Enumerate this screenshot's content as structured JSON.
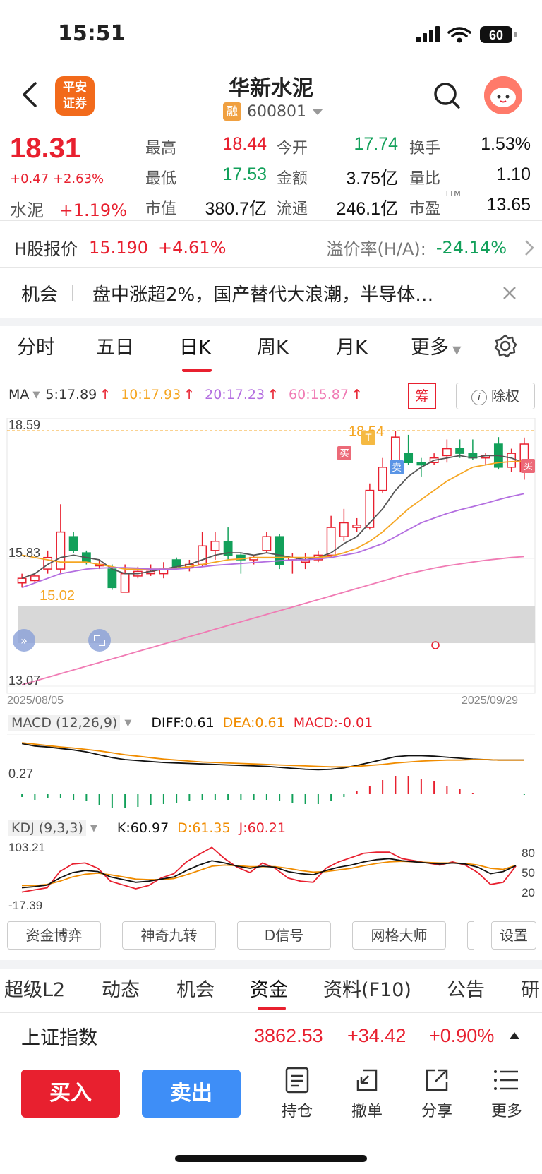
{
  "status_bar": {
    "time": "15:51",
    "battery": "60"
  },
  "header": {
    "logo_text_1": "平安",
    "logo_text_2": "证券",
    "stock_name": "华新水泥",
    "rong_badge": "融",
    "stock_code": "600801",
    "icons": [
      "back-icon",
      "search-icon",
      "avatar-icon"
    ]
  },
  "quote": {
    "price": "18.31",
    "change": "+0.47 +2.63%",
    "sector_label": "水泥",
    "sector_change": "+1.19%",
    "fields": [
      {
        "label": "最高",
        "value": "18.44",
        "color": "red"
      },
      {
        "label": "今开",
        "value": "17.74",
        "color": "green"
      },
      {
        "label": "换手",
        "value": "1.53%",
        "color": "black"
      },
      {
        "label": "最低",
        "value": "17.53",
        "color": "green"
      },
      {
        "label": "金额",
        "value": "3.75亿",
        "color": "black"
      },
      {
        "label": "量比",
        "value": "1.10",
        "color": "black"
      },
      {
        "label": "市值",
        "value": "380.7亿",
        "color": "black"
      },
      {
        "label": "流通",
        "value": "246.1亿",
        "color": "black"
      },
      {
        "label": "市盈",
        "value": "13.65",
        "color": "black"
      }
    ],
    "pe_sup": "TTM"
  },
  "hshare": {
    "label": "H股报价",
    "price": "15.190",
    "change": "+4.61%",
    "premium_label": "溢价率(H/A):",
    "premium_value": "-24.14%"
  },
  "opportunity": {
    "tag": "机会",
    "text": "盘中涨超2%，国产替代大浪潮，半导体…"
  },
  "ktabs": [
    "分时",
    "五日",
    "日K",
    "周K",
    "月K",
    "更多"
  ],
  "ktab_active": "日K",
  "ma": {
    "label": "MA",
    "ma5": "5:17.89",
    "ma10": "10:17.93",
    "ma20": "20:17.23",
    "ma60": "60:15.87",
    "chou": "筹",
    "chuquan": "除权"
  },
  "kchart_labels": {
    "top": "18.59",
    "mid": "15.83",
    "bottom": "13.07",
    "low_marker": "15.02",
    "high_marker": "18.54",
    "date_start": "2025/08/05",
    "date_end": "2025/09/29",
    "buy_tag": "买",
    "sell_tag": "卖",
    "t_tag": "T"
  },
  "macd": {
    "name": "MACD (12,26,9)",
    "diff": "DIFF:0.61",
    "dea": "DEA:0.61",
    "macd": "MACD:-0.01",
    "axis": "0.27"
  },
  "kdj": {
    "name": "KDJ (9,3,3)",
    "k": "K:60.97",
    "d": "D:61.35",
    "j": "J:60.21",
    "top": "103.21",
    "bottom": "-17.39",
    "r80": "80",
    "r50": "50",
    "r20": "20"
  },
  "tools": [
    "资金博弈",
    "神奇九转",
    "D信号",
    "网格大师",
    "设置"
  ],
  "btabs": [
    "超级L2",
    "动态",
    "机会",
    "资金",
    "资料(F10)",
    "公告",
    "研"
  ],
  "btab_active": "资金",
  "index": {
    "name": "上证指数",
    "value": "3862.53",
    "change": "+34.42",
    "pct": "+0.90%"
  },
  "bottom": {
    "buy": "买入",
    "sell": "卖出",
    "items": [
      "持仓",
      "撤单",
      "分享",
      "更多"
    ]
  },
  "colors": {
    "up": "#e8202f",
    "down": "#12a05a",
    "ma10": "#f5a623",
    "ma20": "#b36ee0",
    "ma60": "#f07bb4",
    "accent": "#3e8ef7"
  },
  "chart_data": {
    "type": "candlestick",
    "x_range": [
      "2025/08/05",
      "2025/09/29"
    ],
    "ylim": [
      13.07,
      18.59
    ],
    "candles": [
      {
        "o": 15.3,
        "c": 15.4,
        "h": 15.5,
        "l": 15.2
      },
      {
        "o": 15.35,
        "c": 15.45,
        "h": 15.5,
        "l": 15.3
      },
      {
        "o": 15.6,
        "c": 15.85,
        "h": 16.0,
        "l": 15.5
      },
      {
        "o": 15.6,
        "c": 16.4,
        "h": 17.0,
        "l": 15.5
      },
      {
        "o": 16.3,
        "c": 16.0,
        "h": 16.4,
        "l": 15.95
      },
      {
        "o": 15.95,
        "c": 15.75,
        "h": 16.0,
        "l": 15.7
      },
      {
        "o": 15.7,
        "c": 15.7,
        "h": 15.8,
        "l": 15.6
      },
      {
        "o": 15.6,
        "c": 15.2,
        "h": 15.7,
        "l": 15.15
      },
      {
        "o": 15.1,
        "c": 15.5,
        "h": 15.7,
        "l": 15.1
      },
      {
        "o": 15.45,
        "c": 15.55,
        "h": 15.65,
        "l": 15.4
      },
      {
        "o": 15.5,
        "c": 15.55,
        "h": 15.7,
        "l": 15.45
      },
      {
        "o": 15.5,
        "c": 15.6,
        "h": 15.75,
        "l": 15.4
      },
      {
        "o": 15.8,
        "c": 15.65,
        "h": 15.85,
        "l": 15.6
      },
      {
        "o": 15.65,
        "c": 15.7,
        "h": 15.8,
        "l": 15.55
      },
      {
        "o": 15.7,
        "c": 16.1,
        "h": 16.4,
        "l": 15.65
      },
      {
        "o": 16.0,
        "c": 16.2,
        "h": 16.4,
        "l": 15.8
      },
      {
        "o": 16.2,
        "c": 15.9,
        "h": 16.5,
        "l": 15.8
      },
      {
        "o": 15.9,
        "c": 15.8,
        "h": 15.95,
        "l": 15.5
      },
      {
        "o": 15.8,
        "c": 15.85,
        "h": 15.9,
        "l": 15.7
      },
      {
        "o": 16.0,
        "c": 16.3,
        "h": 16.4,
        "l": 15.95
      },
      {
        "o": 16.3,
        "c": 15.7,
        "h": 16.35,
        "l": 15.6
      },
      {
        "o": 15.8,
        "c": 15.85,
        "h": 15.95,
        "l": 15.5
      },
      {
        "o": 15.75,
        "c": 15.8,
        "h": 15.95,
        "l": 15.6
      },
      {
        "o": 15.8,
        "c": 15.9,
        "h": 16.0,
        "l": 15.75
      },
      {
        "o": 15.9,
        "c": 16.5,
        "h": 16.75,
        "l": 15.85
      },
      {
        "o": 16.3,
        "c": 16.6,
        "h": 16.9,
        "l": 16.2
      },
      {
        "o": 16.5,
        "c": 16.55,
        "h": 16.7,
        "l": 16.4
      },
      {
        "o": 16.5,
        "c": 17.3,
        "h": 17.45,
        "l": 16.45
      },
      {
        "o": 17.3,
        "c": 17.8,
        "h": 18.0,
        "l": 17.25
      },
      {
        "o": 17.8,
        "c": 18.45,
        "h": 18.59,
        "l": 17.7
      },
      {
        "o": 18.1,
        "c": 17.9,
        "h": 18.5,
        "l": 17.85
      },
      {
        "o": 17.9,
        "c": 17.85,
        "h": 18.0,
        "l": 17.6
      },
      {
        "o": 17.9,
        "c": 18.0,
        "h": 18.1,
        "l": 17.85
      },
      {
        "o": 18.05,
        "c": 18.2,
        "h": 18.4,
        "l": 17.9
      },
      {
        "o": 18.2,
        "c": 18.1,
        "h": 18.4,
        "l": 18.0
      },
      {
        "o": 18.1,
        "c": 18.0,
        "h": 18.4,
        "l": 17.95
      },
      {
        "o": 18.0,
        "c": 18.05,
        "h": 18.1,
        "l": 17.85
      },
      {
        "o": 18.3,
        "c": 17.8,
        "h": 18.45,
        "l": 17.75
      },
      {
        "o": 17.8,
        "c": 18.1,
        "h": 18.2,
        "l": 17.7
      },
      {
        "o": 17.7,
        "c": 18.3,
        "h": 18.44,
        "l": 17.53
      }
    ],
    "series": [
      {
        "name": "MA5",
        "values": [
          15.4,
          15.5,
          15.7,
          15.85,
          15.9,
          15.85,
          15.8,
          15.6,
          15.5,
          15.5,
          15.55,
          15.6,
          15.65,
          15.7,
          15.8,
          15.9,
          15.95,
          15.95,
          15.9,
          15.95,
          15.9,
          15.85,
          15.8,
          15.85,
          15.95,
          16.15,
          16.3,
          16.6,
          16.9,
          17.3,
          17.6,
          17.8,
          17.95,
          18.0,
          18.05,
          18.0,
          18.05,
          18.05,
          18.0,
          17.89
        ]
      },
      {
        "name": "MA10",
        "values": [
          15.9,
          15.85,
          15.8,
          15.75,
          15.75,
          15.75,
          15.7,
          15.65,
          15.6,
          15.6,
          15.6,
          15.6,
          15.62,
          15.65,
          15.7,
          15.75,
          15.8,
          15.82,
          15.85,
          15.85,
          15.85,
          15.85,
          15.85,
          15.85,
          15.88,
          15.95,
          16.05,
          16.2,
          16.4,
          16.65,
          16.9,
          17.1,
          17.3,
          17.5,
          17.65,
          17.8,
          17.85,
          17.9,
          17.92,
          17.93
        ]
      },
      {
        "name": "MA20",
        "values": [
          15.2,
          15.3,
          15.4,
          15.5,
          15.55,
          15.6,
          15.62,
          15.63,
          15.63,
          15.62,
          15.6,
          15.6,
          15.6,
          15.62,
          15.65,
          15.68,
          15.7,
          15.72,
          15.74,
          15.76,
          15.78,
          15.8,
          15.8,
          15.82,
          15.85,
          15.9,
          15.95,
          16.05,
          16.15,
          16.3,
          16.45,
          16.6,
          16.7,
          16.8,
          16.88,
          16.95,
          17.02,
          17.1,
          17.17,
          17.23
        ]
      },
      {
        "name": "MA60",
        "values": [
          13.1,
          13.18,
          13.26,
          13.34,
          13.42,
          13.5,
          13.58,
          13.66,
          13.74,
          13.82,
          13.9,
          13.98,
          14.06,
          14.14,
          14.22,
          14.3,
          14.38,
          14.46,
          14.54,
          14.62,
          14.7,
          14.78,
          14.86,
          14.94,
          15.02,
          15.1,
          15.18,
          15.26,
          15.34,
          15.42,
          15.5,
          15.56,
          15.62,
          15.67,
          15.71,
          15.75,
          15.79,
          15.82,
          15.85,
          15.87
        ]
      }
    ],
    "macd": {
      "diff": [
        0.95,
        0.9,
        0.88,
        0.85,
        0.82,
        0.78,
        0.72,
        0.66,
        0.62,
        0.6,
        0.58,
        0.56,
        0.55,
        0.54,
        0.53,
        0.52,
        0.51,
        0.5,
        0.49,
        0.48,
        0.46,
        0.44,
        0.42,
        0.41,
        0.42,
        0.45,
        0.5,
        0.56,
        0.62,
        0.68,
        0.7,
        0.7,
        0.69,
        0.67,
        0.65,
        0.63,
        0.62,
        0.61,
        0.61,
        0.61
      ],
      "dea": [
        0.97,
        0.94,
        0.91,
        0.88,
        0.86,
        0.83,
        0.8,
        0.76,
        0.72,
        0.69,
        0.66,
        0.63,
        0.61,
        0.59,
        0.57,
        0.56,
        0.55,
        0.54,
        0.53,
        0.52,
        0.51,
        0.5,
        0.49,
        0.48,
        0.47,
        0.47,
        0.48,
        0.5,
        0.52,
        0.55,
        0.57,
        0.59,
        0.6,
        0.61,
        0.61,
        0.62,
        0.62,
        0.61,
        0.61,
        0.61
      ],
      "hist": [
        -0.04,
        -0.08,
        -0.06,
        -0.06,
        -0.08,
        -0.1,
        -0.16,
        -0.2,
        -0.2,
        -0.18,
        -0.16,
        -0.14,
        -0.12,
        -0.1,
        -0.08,
        -0.08,
        -0.08,
        -0.08,
        -0.08,
        -0.08,
        -0.1,
        -0.12,
        -0.14,
        -0.14,
        -0.1,
        -0.04,
        0.04,
        0.12,
        0.2,
        0.26,
        0.26,
        0.22,
        0.18,
        0.12,
        0.08,
        0.02,
        0.0,
        0.0,
        0.0,
        -0.01
      ]
    },
    "kdj": {
      "k": [
        20,
        22,
        25,
        38,
        48,
        52,
        50,
        40,
        35,
        30,
        32,
        36,
        40,
        52,
        62,
        70,
        66,
        60,
        56,
        60,
        58,
        50,
        46,
        44,
        52,
        58,
        62,
        68,
        72,
        74,
        70,
        68,
        66,
        64,
        66,
        64,
        58,
        46,
        50,
        60.97
      ],
      "d": [
        24,
        24,
        26,
        32,
        40,
        45,
        47,
        44,
        40,
        36,
        35,
        35,
        37,
        44,
        52,
        60,
        62,
        61,
        59,
        59,
        59,
        56,
        52,
        49,
        50,
        53,
        56,
        61,
        65,
        68,
        69,
        68,
        67,
        66,
        66,
        65,
        62,
        56,
        54,
        61.35
      ],
      "j": [
        12,
        16,
        20,
        50,
        64,
        66,
        56,
        32,
        25,
        18,
        24,
        38,
        46,
        68,
        82,
        95,
        74,
        58,
        48,
        66,
        56,
        38,
        32,
        30,
        56,
        68,
        76,
        84,
        86,
        86,
        74,
        70,
        66,
        62,
        68,
        62,
        48,
        26,
        30,
        60.21
      ]
    }
  }
}
